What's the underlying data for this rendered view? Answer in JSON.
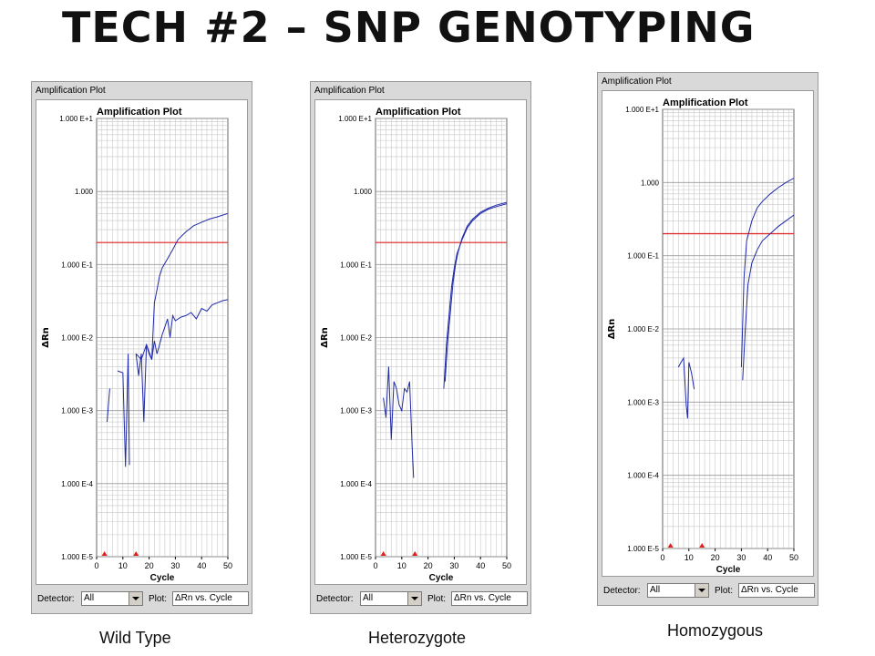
{
  "slide": {
    "title": "Tech #2 – SNP Genotyping",
    "captions": [
      "Wild Type",
      "Heterozygote",
      "Homozygous"
    ]
  },
  "panel_common": {
    "window_title": "Amplification Plot",
    "detector_label": "Detector:",
    "detector_value": "All",
    "plot_label": "Plot:",
    "plot_value": "ΔRn vs. Cycle"
  },
  "colors": {
    "curve": "#1f2aa8",
    "threshold": "#e02020",
    "grid": "#c8c8c8",
    "marker": "#e02020"
  },
  "chart_data": [
    {
      "type": "line",
      "title": "Amplification Plot",
      "xlabel": "Cycle",
      "ylabel": "ΔRn",
      "xlim": [
        0,
        50
      ],
      "ylim": [
        1e-05,
        10
      ],
      "yscale": "log",
      "x_ticks": [
        0,
        10,
        20,
        30,
        40,
        50
      ],
      "y_ticks": [
        {
          "value": 10,
          "label": "1.000 E+1"
        },
        {
          "value": 1,
          "label": "1.000"
        },
        {
          "value": 0.1,
          "label": "1.000 E-1"
        },
        {
          "value": 0.01,
          "label": "1.000 E-2"
        },
        {
          "value": 0.001,
          "label": "1.000 E-3"
        },
        {
          "value": 0.0001,
          "label": "1.000 E-4"
        },
        {
          "value": 1e-05,
          "label": "1.000 E-5"
        }
      ],
      "threshold": 0.2,
      "series": [
        {
          "segments": [
            [
              [
                4,
                0.0007
              ],
              [
                5,
                0.002
              ]
            ],
            [
              [
                8,
                0.0035
              ],
              [
                10,
                0.0033
              ],
              [
                11,
                0.00017
              ],
              [
                12,
                0.006
              ],
              [
                12.5,
                0.00018
              ]
            ],
            [
              [
                15,
                0.006
              ],
              [
                16,
                0.003
              ],
              [
                17,
                0.006
              ],
              [
                18,
                0.0007
              ],
              [
                19,
                0.008
              ],
              [
                20,
                0.006
              ],
              [
                21,
                0.005
              ],
              [
                22,
                0.03
              ],
              [
                23,
                0.045
              ],
              [
                24,
                0.07
              ],
              [
                25,
                0.09
              ],
              [
                27,
                0.12
              ],
              [
                29,
                0.16
              ],
              [
                31,
                0.22
              ],
              [
                34,
                0.28
              ],
              [
                37,
                0.34
              ],
              [
                40,
                0.38
              ],
              [
                43,
                0.42
              ],
              [
                46,
                0.45
              ],
              [
                50,
                0.5
              ]
            ]
          ]
        },
        {
          "segments": [
            [
              [
                15,
                0.006
              ],
              [
                17,
                0.005
              ],
              [
                19,
                0.008
              ],
              [
                21,
                0.005
              ],
              [
                22,
                0.009
              ],
              [
                23,
                0.006
              ],
              [
                24,
                0.008
              ],
              [
                25,
                0.011
              ],
              [
                26,
                0.014
              ],
              [
                27,
                0.018
              ],
              [
                28,
                0.01
              ],
              [
                29,
                0.02
              ],
              [
                30,
                0.017
              ],
              [
                32,
                0.019
              ],
              [
                34,
                0.02
              ],
              [
                36,
                0.022
              ],
              [
                38,
                0.018
              ],
              [
                40,
                0.025
              ],
              [
                42,
                0.023
              ],
              [
                44,
                0.028
              ],
              [
                46,
                0.03
              ],
              [
                48,
                0.032
              ],
              [
                50,
                0.033
              ]
            ]
          ]
        }
      ]
    },
    {
      "type": "line",
      "title": "Amplification Plot",
      "xlabel": "Cycle",
      "ylabel": "ΔRn",
      "xlim": [
        0,
        50
      ],
      "ylim": [
        1e-05,
        10
      ],
      "yscale": "log",
      "x_ticks": [
        0,
        10,
        20,
        30,
        40,
        50
      ],
      "y_ticks": [
        {
          "value": 10,
          "label": "1.000 E+1"
        },
        {
          "value": 1,
          "label": "1.000"
        },
        {
          "value": 0.1,
          "label": "1.000 E-1"
        },
        {
          "value": 0.01,
          "label": "1.000 E-2"
        },
        {
          "value": 0.001,
          "label": "1.000 E-3"
        },
        {
          "value": 0.0001,
          "label": "1.000 E-4"
        },
        {
          "value": 1e-05,
          "label": "1.000 E-5"
        }
      ],
      "threshold": 0.2,
      "series": [
        {
          "segments": [
            [
              [
                3,
                0.0015
              ],
              [
                4,
                0.0008
              ],
              [
                5,
                0.004
              ],
              [
                6,
                0.0004
              ],
              [
                7,
                0.0025
              ],
              [
                8,
                0.002
              ],
              [
                9,
                0.0012
              ],
              [
                10,
                0.001
              ],
              [
                11,
                0.002
              ],
              [
                12,
                0.0018
              ],
              [
                13,
                0.0025
              ],
              [
                14,
                0.0003
              ],
              [
                14.5,
                0.00012
              ]
            ],
            [
              [
                26,
                0.002
              ],
              [
                27,
                0.008
              ],
              [
                28,
                0.02
              ],
              [
                29,
                0.05
              ],
              [
                30,
                0.09
              ],
              [
                31,
                0.14
              ],
              [
                33,
                0.22
              ],
              [
                35,
                0.32
              ],
              [
                37,
                0.4
              ],
              [
                40,
                0.5
              ],
              [
                43,
                0.57
              ],
              [
                46,
                0.62
              ],
              [
                50,
                0.68
              ]
            ]
          ]
        },
        {
          "segments": [
            [
              [
                26.5,
                0.0025
              ],
              [
                27.5,
                0.009
              ],
              [
                28.5,
                0.022
              ],
              [
                29.5,
                0.055
              ],
              [
                30.5,
                0.1
              ],
              [
                31.5,
                0.15
              ],
              [
                33,
                0.23
              ],
              [
                35,
                0.34
              ],
              [
                37,
                0.42
              ],
              [
                40,
                0.52
              ],
              [
                43,
                0.59
              ],
              [
                46,
                0.65
              ],
              [
                50,
                0.71
              ]
            ]
          ]
        }
      ]
    },
    {
      "type": "line",
      "title": "Amplification Plot",
      "xlabel": "Cycle",
      "ylabel": "ΔRn",
      "xlim": [
        0,
        50
      ],
      "ylim": [
        1e-05,
        10
      ],
      "yscale": "log",
      "x_ticks": [
        0,
        10,
        20,
        30,
        40,
        50
      ],
      "y_ticks": [
        {
          "value": 10,
          "label": "1.000 E+1"
        },
        {
          "value": 1,
          "label": "1.000"
        },
        {
          "value": 0.1,
          "label": "1.000 E-1"
        },
        {
          "value": 0.01,
          "label": "1.000 E-2"
        },
        {
          "value": 0.001,
          "label": "1.000 E-3"
        },
        {
          "value": 0.0001,
          "label": "1.000 E-4"
        },
        {
          "value": 1e-05,
          "label": "1.000 E-5"
        }
      ],
      "threshold": 0.2,
      "series": [
        {
          "segments": [
            [
              [
                6,
                0.003
              ],
              [
                7,
                0.0035
              ],
              [
                8,
                0.004
              ],
              [
                9,
                0.0009
              ],
              [
                9.5,
                0.0006
              ],
              [
                10,
                0.0035
              ],
              [
                11,
                0.0025
              ],
              [
                12,
                0.0015
              ]
            ],
            [
              [
                30,
                0.003
              ],
              [
                31,
                0.05
              ],
              [
                32,
                0.16
              ],
              [
                34,
                0.3
              ],
              [
                36,
                0.45
              ],
              [
                38,
                0.55
              ],
              [
                41,
                0.7
              ],
              [
                44,
                0.85
              ],
              [
                47,
                1.0
              ],
              [
                50,
                1.15
              ]
            ]
          ]
        },
        {
          "segments": [
            [
              [
                30.5,
                0.002
              ],
              [
                31.5,
                0.01
              ],
              [
                32.5,
                0.04
              ],
              [
                34,
                0.08
              ],
              [
                36,
                0.12
              ],
              [
                38,
                0.16
              ],
              [
                41,
                0.2
              ],
              [
                44,
                0.25
              ],
              [
                47,
                0.3
              ],
              [
                50,
                0.36
              ]
            ]
          ]
        }
      ]
    }
  ]
}
